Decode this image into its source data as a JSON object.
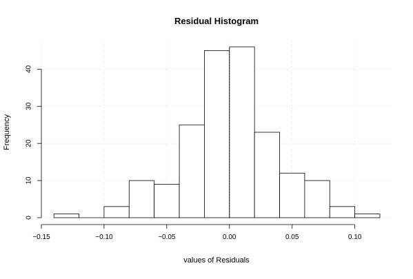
{
  "chart_data": {
    "type": "bar",
    "title": "Residual Histogram",
    "xlabel": "values of Residuals",
    "ylabel": "Frequency",
    "bins": [
      {
        "x0": -0.14,
        "x1": -0.12,
        "count": 1
      },
      {
        "x0": -0.12,
        "x1": -0.1,
        "count": 0
      },
      {
        "x0": -0.1,
        "x1": -0.08,
        "count": 3
      },
      {
        "x0": -0.08,
        "x1": -0.06,
        "count": 10
      },
      {
        "x0": -0.06,
        "x1": -0.04,
        "count": 9
      },
      {
        "x0": -0.04,
        "x1": -0.02,
        "count": 25
      },
      {
        "x0": -0.02,
        "x1": 0.0,
        "count": 45
      },
      {
        "x0": 0.0,
        "x1": 0.02,
        "count": 46
      },
      {
        "x0": 0.02,
        "x1": 0.04,
        "count": 23
      },
      {
        "x0": 0.04,
        "x1": 0.06,
        "count": 12
      },
      {
        "x0": 0.06,
        "x1": 0.08,
        "count": 10
      },
      {
        "x0": 0.08,
        "x1": 0.1,
        "count": 3
      },
      {
        "x0": 0.1,
        "x1": 0.12,
        "count": 1
      }
    ],
    "xlim": [
      -0.15,
      0.12
    ],
    "ylim": [
      0,
      46
    ],
    "x_ticks": [
      -0.15,
      -0.1,
      -0.05,
      0.0,
      0.05,
      0.1
    ],
    "x_tick_labels": [
      "−0.15",
      "−0.10",
      "−0.05",
      "0.00",
      "0.05",
      "0.10"
    ],
    "y_ticks": [
      0,
      10,
      20,
      30,
      40
    ],
    "y_tick_labels": [
      "0",
      "10",
      "20",
      "30",
      "40"
    ],
    "grid": true,
    "reference_line_x": 0.0
  }
}
